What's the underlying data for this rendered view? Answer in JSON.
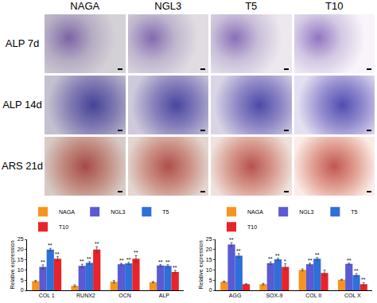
{
  "panels": {
    "columns": [
      "NAGA",
      "NGL3",
      "T5",
      "T10"
    ],
    "rows": [
      "ALP 7d",
      "ALP 14d",
      "ARS 21d"
    ]
  },
  "chart_data": [
    {
      "type": "bar",
      "ylabel": "Relative expression",
      "categories": [
        "COL 1",
        "RUNX2",
        "OCN",
        "ALP"
      ],
      "series": [
        {
          "name": "NAGA",
          "color": "#f7941d",
          "values": [
            4.5,
            2.2,
            4.2,
            4.0
          ],
          "errors": [
            0.4,
            0.5,
            0.6,
            0.3
          ],
          "marks": [
            null,
            null,
            null,
            null
          ]
        },
        {
          "name": "NGL3",
          "color": "#5a5ad2",
          "values": [
            11.5,
            12.0,
            12.8,
            12.2
          ],
          "errors": [
            1.0,
            0.8,
            0.4,
            0.4
          ],
          "marks": [
            "**",
            "**",
            "**",
            "**"
          ]
        },
        {
          "name": "T5",
          "color": "#2e6fd8",
          "values": [
            20.0,
            13.5,
            13.2,
            12.0
          ],
          "errors": [
            0.6,
            0.6,
            0.5,
            0.6
          ],
          "marks": [
            "**",
            "**",
            "**",
            "**"
          ]
        },
        {
          "name": "T10",
          "color": "#e8232a",
          "values": [
            15.5,
            20.0,
            15.5,
            9.0
          ],
          "errors": [
            1.0,
            1.4,
            1.6,
            0.8
          ],
          "marks": [
            "**",
            "**",
            "**",
            "**"
          ]
        }
      ],
      "ylim": [
        0,
        25
      ],
      "yticks": [
        0,
        5,
        10,
        15,
        20,
        25
      ],
      "grid": false,
      "legend": "top"
    },
    {
      "type": "bar",
      "ylabel": "Relative expression",
      "categories": [
        "AGG",
        "SOX-9",
        "COL II",
        "COL X"
      ],
      "series": [
        {
          "name": "NAGA",
          "color": "#f7941d",
          "values": [
            4.2,
            3.0,
            10.0,
            5.2
          ],
          "errors": [
            0.3,
            0.4,
            0.5,
            0.2
          ],
          "marks": [
            null,
            null,
            null,
            null
          ]
        },
        {
          "name": "NGL3",
          "color": "#5a5ad2",
          "values": [
            22.5,
            13.3,
            12.8,
            13.0
          ],
          "errors": [
            0.9,
            0.6,
            0.5,
            0.3
          ],
          "marks": [
            "**",
            "**",
            "**",
            "**"
          ]
        },
        {
          "name": "T5",
          "color": "#2e6fd8",
          "values": [
            17.0,
            15.2,
            15.5,
            7.5
          ],
          "errors": [
            1.0,
            0.5,
            0.6,
            0.7
          ],
          "marks": [
            "**",
            "**",
            "**",
            "**"
          ]
        },
        {
          "name": "T10",
          "color": "#e8232a",
          "values": [
            3.0,
            11.5,
            8.5,
            3.0
          ],
          "errors": [
            0.2,
            1.5,
            1.4,
            0.8
          ],
          "marks": [
            null,
            "*",
            null,
            "**"
          ]
        }
      ],
      "ylim": [
        0,
        25
      ],
      "yticks": [
        0,
        5,
        10,
        15,
        20,
        25
      ],
      "grid": false,
      "legend": "top"
    }
  ]
}
